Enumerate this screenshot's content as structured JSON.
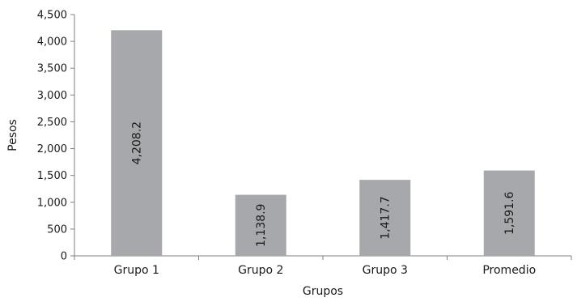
{
  "chart_data": {
    "type": "bar",
    "title": "",
    "xlabel": "Grupos",
    "ylabel": "Pesos",
    "categories": [
      "Grupo 1",
      "Grupo 2",
      "Grupo 3",
      "Promedio"
    ],
    "values": [
      4208.2,
      1138.9,
      1417.7,
      1591.6
    ],
    "data_labels": [
      "4,208.2",
      "1,138.9",
      "1,417.7",
      "1,591.6"
    ],
    "ylim": [
      0,
      4500
    ],
    "yticks": [
      0,
      500,
      1000,
      1500,
      2000,
      2500,
      3000,
      3500,
      4000,
      4500
    ],
    "ytick_labels": [
      "0",
      "500",
      "1,000",
      "1,500",
      "2,000",
      "2,500",
      "3,000",
      "3,500",
      "4,000",
      "4,500"
    ],
    "grid": false,
    "legend": "none",
    "bar_color": "#a6a8ab",
    "axis_color": "#7f7f7f",
    "data_label_orientation": "vertical"
  }
}
